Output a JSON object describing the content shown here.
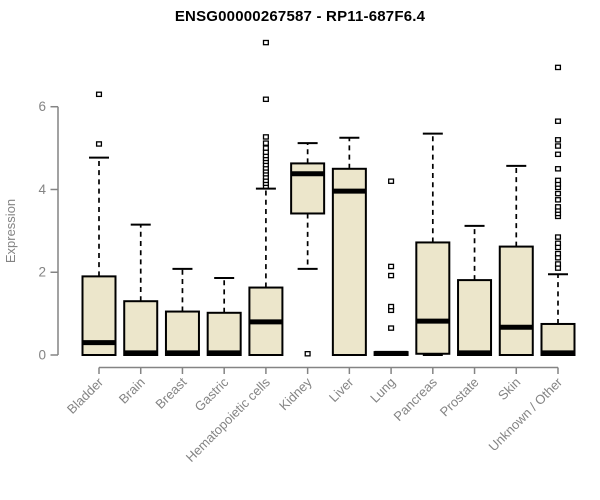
{
  "chart_data": {
    "type": "box",
    "title": "ENSG00000267587 - RP11-687F6.4",
    "ylabel": "Expression",
    "xlabel": "",
    "yticks": [
      0,
      2,
      4,
      6
    ],
    "ylim": [
      0,
      7.7
    ],
    "grid": false,
    "legend": "none",
    "box_fill": "#ece6cb",
    "box_stroke": "#000000",
    "axis_color": "#848484",
    "title_color": "#000000",
    "boxes": [
      {
        "label": "Bladder",
        "whisker_low": 0,
        "q1": 0,
        "median": 0.3,
        "q3": 1.9,
        "whisker_high": 4.77,
        "outliers": [
          5.1,
          6.3
        ]
      },
      {
        "label": "Brain",
        "whisker_low": 0,
        "q1": 0,
        "median": 0.05,
        "q3": 1.3,
        "whisker_high": 3.15,
        "outliers": []
      },
      {
        "label": "Breast",
        "whisker_low": 0,
        "q1": 0,
        "median": 0.05,
        "q3": 1.05,
        "whisker_high": 2.08,
        "outliers": []
      },
      {
        "label": "Gastric",
        "whisker_low": 0,
        "q1": 0,
        "median": 0.05,
        "q3": 1.02,
        "whisker_high": 1.86,
        "outliers": []
      },
      {
        "label": "Hematopoietic cells",
        "whisker_low": 0,
        "q1": 0,
        "median": 0.8,
        "q3": 1.63,
        "whisker_high": 4.02,
        "outliers": [
          4.08,
          4.15,
          4.22,
          4.3,
          4.38,
          4.45,
          4.52,
          4.6,
          4.68,
          4.75,
          4.82,
          4.9,
          5.0,
          5.12,
          5.27,
          6.18,
          7.55
        ]
      },
      {
        "label": "Kidney",
        "whisker_low": 2.08,
        "q1": 3.42,
        "median": 4.38,
        "q3": 4.63,
        "whisker_high": 5.12,
        "outliers": [
          0.03
        ]
      },
      {
        "label": "Liver",
        "whisker_low": 0,
        "q1": 0,
        "median": 3.96,
        "q3": 4.5,
        "whisker_high": 5.25,
        "outliers": []
      },
      {
        "label": "Lung",
        "whisker_low": 0,
        "q1": 0,
        "median": 0.04,
        "q3": 0.07,
        "whisker_high": 0.07,
        "outliers": [
          0.65,
          1.08,
          1.17,
          1.92,
          2.14,
          4.2
        ]
      },
      {
        "label": "Pancreas",
        "whisker_low": 0,
        "q1": 0.03,
        "median": 0.82,
        "q3": 2.72,
        "whisker_high": 5.35,
        "outliers": []
      },
      {
        "label": "Prostate",
        "whisker_low": 0,
        "q1": 0,
        "median": 0.05,
        "q3": 1.81,
        "whisker_high": 3.12,
        "outliers": []
      },
      {
        "label": "Skin",
        "whisker_low": 0,
        "q1": 0,
        "median": 0.67,
        "q3": 2.62,
        "whisker_high": 4.57,
        "outliers": []
      },
      {
        "label": "Unknown / Other",
        "whisker_low": 0,
        "q1": 0,
        "median": 0.05,
        "q3": 0.75,
        "whisker_high": 1.95,
        "outliers": [
          2.1,
          2.2,
          2.35,
          2.45,
          2.6,
          2.7,
          2.85,
          3.35,
          3.42,
          3.5,
          3.58,
          3.75,
          3.9,
          4.05,
          4.13,
          4.22,
          4.5,
          4.85,
          5.05,
          5.2,
          5.65,
          6.95
        ]
      }
    ]
  }
}
